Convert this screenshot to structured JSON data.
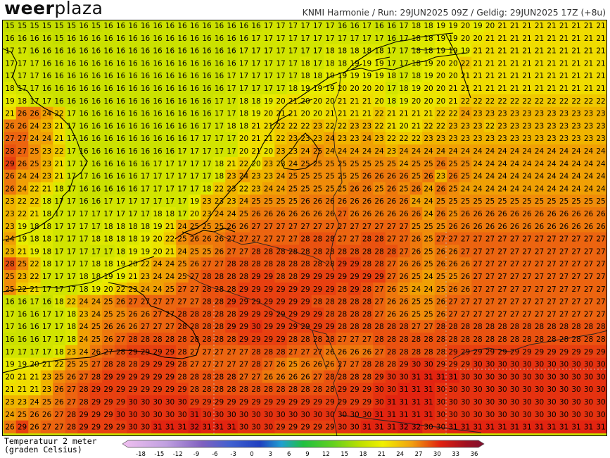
{
  "header": {
    "logo_prefix": "weer",
    "logo_suffix": "plaza",
    "run_info": "KNMI Harmonie / Run: 29JUN2025 09Z / Geldig: 29JUN2025 17Z (+8u)"
  },
  "legend": {
    "title_line1": "Temperatuur 2 meter",
    "title_line2": "(graden Celsius)",
    "ticks": [
      "-18",
      "-15",
      "-12",
      "-9",
      "-6",
      "-3",
      "0",
      "3",
      "6",
      "9",
      "12",
      "15",
      "18",
      "21",
      "24",
      "27",
      "30",
      "33",
      "36"
    ],
    "colors": {
      "cold": "#c0a0e0",
      "blue": "#2040c0",
      "green": "#20c040",
      "yellow": "#f0f000",
      "orange": "#f08010",
      "red": "#e01010",
      "darkred": "#801030"
    }
  },
  "map": {
    "cols": 49,
    "rows": 33,
    "x_start": 10,
    "y_start": 7,
    "dx": 17.5,
    "dy": 17.8,
    "grid": [
      "15 15 15 15 15 15 16 15 16 16 16 16 16 16 16 16 16 16 16 16 16 17 17 17 17 17 17 16 16 17 16 16 17 18 18 19 19 20 19 20 21 21 21 21 21 21 21 21 21",
      "16 16 16 16 15 16 16 16 16 16 16 16 16 16 16 16 16 16 16 16 17 17 17 17 17 17 17 17 17 17 17 16 17 18 18 19 19 20 20 21 21 21 21 21 21 21 21 21 21",
      "17 17 16 16 16 16 16 16 16 16 16 16 16 16 16 16 16 16 16 17 17 17 17 17 17 17 18 18 18 18 18 17 17 18 18 19 19 19 21 21 21 21 21 21 21 21 21 21 21",
      "17 17 17 16 16 16 16 16 16 16 16 16 16 16 16 16 16 16 16 17 17 17 17 17 18 17 18 18 19 19 19 17 17 18 19 20 20 22 21 21 21 21 21 21 21 21 21 21 21",
      "17 17 17 16 16 16 16 16 16 16 16 16 16 16 16 16 16 16 17 17 17 17 17 17 18 18 19 19 19 19 19 18 17 18 19 20 20 21 21 21 21 21 21 21 21 21 21 21 21",
      "18 17 17 16 16 16 16 16 16 16 16 16 16 16 16 16 16 16 17 17 17 17 17 18 19 19 19 20 20 20 20 17 18 19 20 20 21 21 21 21 21 21 21 21 21 21 21 21 21",
      "19 18 17 17 16 16 16 16 16 16 16 16 16 16 16 16 16 17 17 18 18 19 20 21 20 20 20 21 21 21 20 18 19 20 20 20 21 22 22 22 22 22 22 22 22 22 22 22 22",
      "21 26 26 24 22 17 16 16 16 16 16 16 16 16 16 16 16 17 17 18 19 20 21 21 20 20 21 21 21 21 22 21 21 21 21 22 22 24 23 23 23 23 23 23 23 23 23 23 23",
      "26 26 24 23 21 17 16 16 16 16 16 16 16 16 16 16 17 17 18 18 21 21 22 22 22 23 22 22 23 23 22 21 20 21 22 22 23 23 23 22 23 23 23 23 23 23 23 23 23",
      "27 27 24 24 21 17 16 16 16 16 16 16 16 16 16 17 17 17 17 20 21 21 22 23 23 23 24 23 23 24 23 22 22 22 23 23 23 23 23 23 23 23 23 23 23 23 23 23 23",
      "28 27 25 23 22 17 16 16 16 16 16 16 16 16 17 17 17 17 17 20 21 20 23 23 24 25 24 24 24 24 24 23 24 24 24 24 24 24 24 24 24 24 24 24 24 24 24 24 24",
      "29 26 25 23 21 17 17 16 16 16 16 16 17 17 17 17 17 18 21 22 20 23 23 24 25 25 25 25 25 25 25 25 24 25 25 26 25 25 24 24 24 24 24 24 24 24 24 24 24",
      "26 24 24 23 21 17 17 16 16 16 16 17 17 17 17 17 17 18 23 24 23 23 24 25 25 25 25 25 25 26 26 26 26 25 26 23 26 25 24 24 24 24 24 24 24 24 24 24 24",
      "26 24 22 21 18 17 16 16 16 16 16 17 17 17 17 17 18 22 23 22 23 24 24 25 25 25 25 25 26 26 25 26 25 26 24 26 25 24 24 24 24 24 24 24 24 24 24 24 24",
      "23 22 22 18 17 17 16 16 17 17 17 17 17 17 17 19 23 23 23 24 25 25 25 25 26 26 26 26 26 26 26 26 26 24 24 25 25 25 25 25 25 25 25 25 25 25 25 25 25",
      "23 22 21 18 17 17 17 17 17 17 17 17 18 18 17 20 23 24 24 25 26 26 26 26 26 26 26 27 26 26 26 26 26 26 24 26 25 26 26 26 26 26 26 26 26 26 26 26 26",
      "23 19 18 18 17 17 17 17 18 18 18 18 19 21 24 25 25 25 26 26 27 27 27 27 27 27 27 27 27 27 27 27 27 25 25 25 26 26 26 26 26 26 26 26 26 26 26 26 26",
      "24 19 18 18 17 17 17 18 18 18 18 19 20 22 25 26 26 26 27 27 27 27 27 27 28 28 28 27 27 28 28 27 27 26 25 27 27 27 27 27 27 27 27 27 27 27 27 27 27",
      "23 21 19 18 17 17 17 17 17 18 19 19 20 21 24 25 25 26 27 27 28 28 28 28 28 28 28 28 28 28 28 28 27 26 25 26 26 27 27 27 27 27 27 27 27 27 27 27 27",
      "28 25 22 18 17 17 17 18 18 19 20 22 24 24 25 26 27 27 28 28 28 28 28 28 28 28 28 29 29 28 28 27 26 26 25 26 26 26 27 27 27 27 27 27 27 27 27 27 27",
      "25 23 22 17 17 17 18 18 19 19 21 23 24 24 25 27 28 28 28 28 29 29 28 28 29 29 29 29 29 29 29 27 26 25 24 25 25 26 27 27 27 27 27 27 27 27 27 27 27",
      "25 22 21 17 17 17 18 19 20 22 23 24 24 25 27 27 28 28 28 29 29 29 29 29 29 29 29 28 29 28 27 26 25 24 24 25 26 26 27 27 27 27 27 27 27 27 27 27 27",
      "16 16 17 16 18 22 24 24 25 26 27 27 27 27 27 27 28 28 29 29 29 29 29 29 29 28 28 28 28 28 27 26 26 25 25 26 27 27 27 27 27 27 27 27 27 27 27 27 27",
      "17 16 16 17 17 18 23 24 25 25 26 26 27 27 28 28 28 28 28 29 29 29 29 29 29 29 28 28 28 28 27 26 26 25 25 26 27 27 27 27 27 27 27 27 27 27 27 27 27",
      "17 16 16 17 17 18 24 25 26 26 26 27 27 27 28 28 28 28 29 29 30 29 29 29 29 29 29 28 28 28 28 28 28 27 27 28 28 28 28 28 28 28 28 28 28 28 28 28 28",
      "16 16 16 17 17 18 24 25 26 27 28 28 28 28 28 28 28 28 28 29 29 29 29 28 28 28 28 27 27 27 28 28 28 28 28 28 28 28 28 28 28 28 28 28 28 28 28 28 28",
      "17 17 17 17 18 23 24 26 27 28 29 29 29 29 28 27 27 27 27 27 28 28 28 27 27 27 26 26 26 26 27 28 28 28 28 28 29 29 29 29 29 29 29 29 29 29 29 29 29",
      "19 19 20 21 22 25 25 27 28 28 28 29 29 29 28 27 27 27 27 27 28 27 26 25 26 26 26 27 27 28 28 28 29 30 30 29 29 29 30 30 30 30 30 30 30 30 30 30 30",
      "20 21 21 23 25 26 27 28 29 29 29 29 29 29 28 28 28 28 28 27 27 26 26 26 26 27 28 28 28 28 29 30 30 31 31 31 31 30 30 30 30 30 30 30 30 30 30 30 30",
      "21 21 21 23 26 27 28 29 29 29 29 29 29 29 29 28 28 28 28 28 28 28 28 28 28 28 28 29 29 29 30 30 31 31 31 30 30 30 30 30 30 30 30 30 30 30 30 30 30",
      "23 23 24 25 26 27 28 29 29 29 30 30 30 30 30 29 29 29 29 29 29 29 29 29 29 29 29 29 29 29 30 31 31 31 31 30 30 30 30 30 30 30 30 30 30 30 30 30 30",
      "24 25 26 26 27 28 29 29 29 30 30 30 30 30 30 31 30 30 30 30 30 30 30 30 30 30 30 30 30 30 31 31 31 31 31 30 30 30 30 30 30 30 30 30 30 30 30 30 30",
      "26 29 26 27 27 28 29 29 29 29 30 30 31 31 31 32 31 31 31 30 30 30 29 29 29 29 29 30 30 31 31 31 32 32 30 30 31 31 31 31 31 31 31 31 31 31 31 31 31"
    ]
  }
}
